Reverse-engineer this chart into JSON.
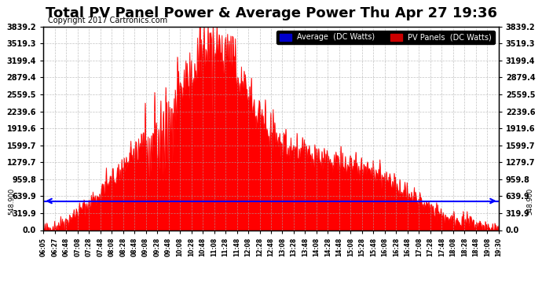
{
  "title": "Total PV Panel Power & Average Power Thu Apr 27 19:36",
  "copyright_text": "Copyright 2017 Cartronics.com",
  "title_fontsize": 13,
  "background_color": "#ffffff",
  "plot_bg_color": "#ffffff",
  "grid_color": "#aaaaaa",
  "ytick_labels": [
    "0.0",
    "319.9",
    "639.9",
    "959.8",
    "1279.7",
    "1599.7",
    "1919.6",
    "2239.6",
    "2559.5",
    "2879.4",
    "3199.4",
    "3519.3",
    "3839.2"
  ],
  "ytick_values": [
    0.0,
    319.9,
    639.9,
    959.8,
    1279.7,
    1599.7,
    1919.6,
    2239.6,
    2559.5,
    2879.4,
    3199.4,
    3519.3,
    3839.2
  ],
  "ymax": 3839.2,
  "ymin": 0.0,
  "average_value": 548.9,
  "average_line_color": "#0000ff",
  "area_fill_color": "#ff0000",
  "area_line_color": "#ff0000",
  "xtick_labels": [
    "06:05",
    "06:27",
    "06:48",
    "07:08",
    "07:28",
    "07:48",
    "08:08",
    "08:28",
    "08:48",
    "09:08",
    "09:28",
    "09:48",
    "10:08",
    "10:28",
    "10:48",
    "11:08",
    "11:28",
    "11:48",
    "12:08",
    "12:28",
    "12:48",
    "13:08",
    "13:28",
    "13:48",
    "14:08",
    "14:28",
    "14:48",
    "15:08",
    "15:28",
    "15:48",
    "16:08",
    "16:28",
    "16:48",
    "17:08",
    "17:28",
    "17:48",
    "18:08",
    "18:28",
    "18:48",
    "19:08",
    "19:30"
  ],
  "legend_avg_label": "Average  (DC Watts)",
  "legend_pv_label": "PV Panels  (DC Watts)",
  "legend_avg_bg": "#0000cc",
  "legend_pv_bg": "#cc0000",
  "left_annotation": "548.900",
  "right_annotation": "548.900"
}
